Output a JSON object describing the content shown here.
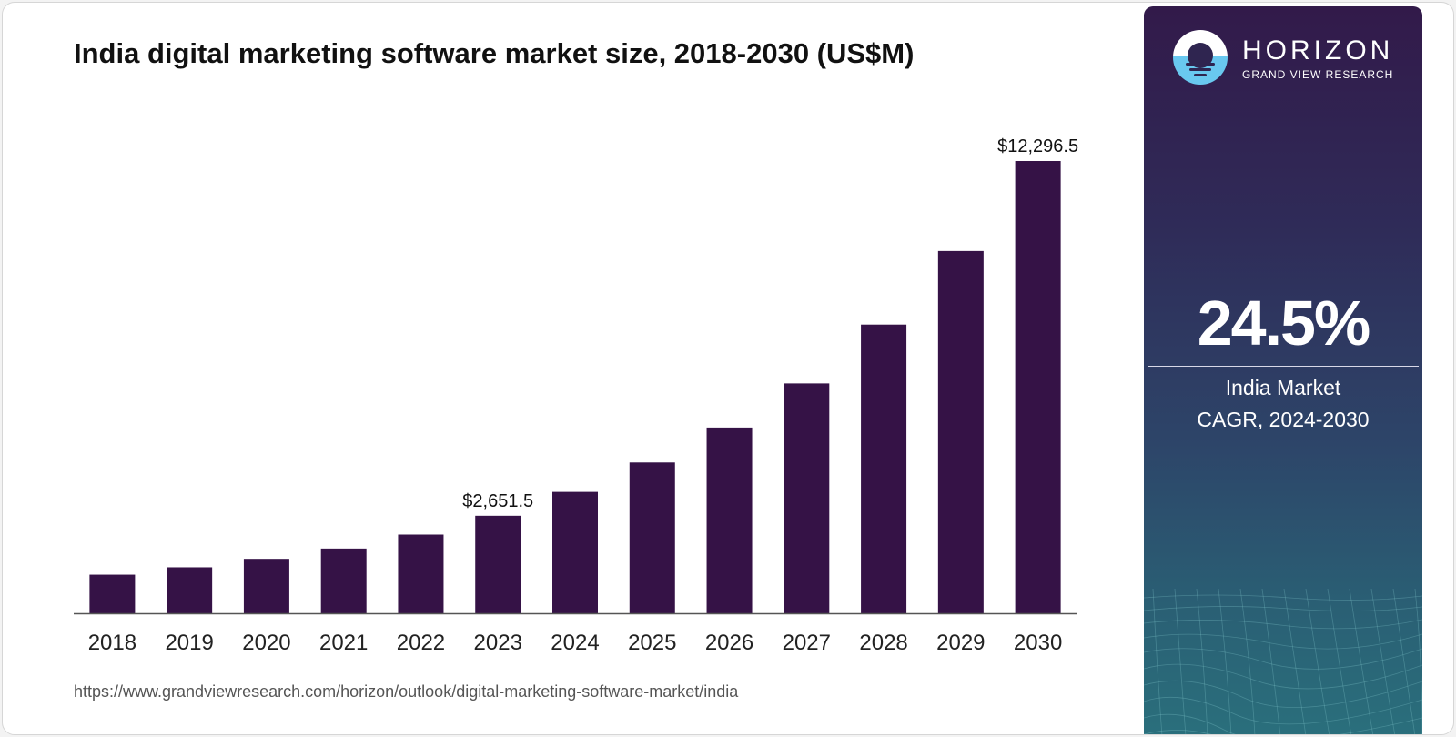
{
  "title": "India digital marketing software market size, 2018-2030 (US$M)",
  "source_url": "https://www.grandviewresearch.com/horizon/outlook/digital-marketing-software-market/india",
  "colors": {
    "bar": "#351246",
    "sidebar_top": "#321a4a",
    "sidebar_bottom": "#2a6f7c",
    "logo_accent": "#69c8ef"
  },
  "brand": {
    "name": "HORIZON",
    "subtitle": "GRAND VIEW RESEARCH",
    "logo_icon": "sunrise-logo-icon"
  },
  "stat": {
    "value": "24.5%",
    "label_line1": "India Market",
    "label_line2": "CAGR, 2024-2030"
  },
  "chart_data": {
    "type": "bar",
    "title": "India digital marketing software market size, 2018-2030 (US$M)",
    "xlabel": "",
    "ylabel": "",
    "categories": [
      "2018",
      "2019",
      "2020",
      "2021",
      "2022",
      "2023",
      "2024",
      "2025",
      "2026",
      "2027",
      "2028",
      "2029",
      "2030"
    ],
    "values": [
      1050,
      1250,
      1480,
      1760,
      2140,
      2651.5,
      3300,
      4100,
      5050,
      6250,
      7850,
      9850,
      12296.5
    ],
    "data_labels": [
      {
        "index": 5,
        "text": "$2,651.5"
      },
      {
        "index": 12,
        "text": "$12,296.5"
      }
    ],
    "ylim": [
      0,
      12296.5
    ],
    "grid": false,
    "legend": "none"
  }
}
